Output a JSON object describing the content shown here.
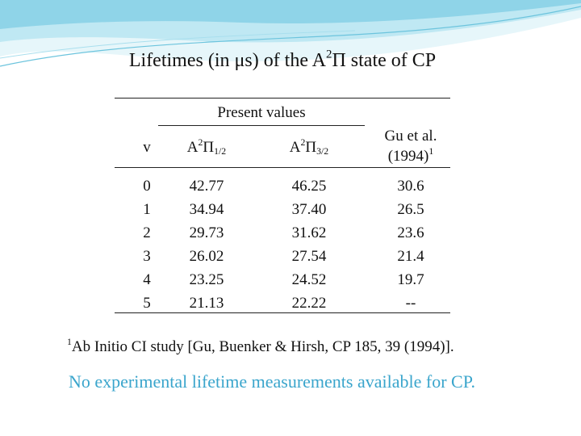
{
  "slide": {
    "title": {
      "text_before": "Lifetimes (in μs) of the A",
      "sup": "2",
      "text_after": "Π state of CP"
    },
    "colors": {
      "accent": "#3aa5cc",
      "wave_light": "#bfe8f3",
      "wave_dark": "#7fcde3"
    },
    "decoration_icon": "wave-banner",
    "table": {
      "group_header": "Present values",
      "headers": {
        "v": "v",
        "col1": {
          "base": "A",
          "sup": "2",
          "symbol": "Π",
          "sub": "1/2"
        },
        "col2": {
          "base": "A",
          "sup": "2",
          "symbol": "Π",
          "sub": "3/2"
        },
        "col3": {
          "line1": "Gu et al.",
          "line2": "(1994)",
          "sup": "1"
        }
      },
      "rows": [
        {
          "v": "0",
          "a1": "42.77",
          "a2": "46.25",
          "gu": "30.6"
        },
        {
          "v": "1",
          "a1": "34.94",
          "a2": "37.40",
          "gu": "26.5"
        },
        {
          "v": "2",
          "a1": "29.73",
          "a2": "31.62",
          "gu": "23.6"
        },
        {
          "v": "3",
          "a1": "26.02",
          "a2": "27.54",
          "gu": "21.4"
        },
        {
          "v": "4",
          "a1": "23.25",
          "a2": "24.52",
          "gu": "19.7"
        },
        {
          "v": "5",
          "a1": "21.13",
          "a2": "22.22",
          "gu": "--"
        }
      ]
    },
    "footnote": {
      "sup": "1",
      "text": "Ab Initio CI study [Gu, Buenker & Hirsh, CP 185, 39 (1994)]."
    },
    "note": "No experimental lifetime measurements available for CP."
  }
}
